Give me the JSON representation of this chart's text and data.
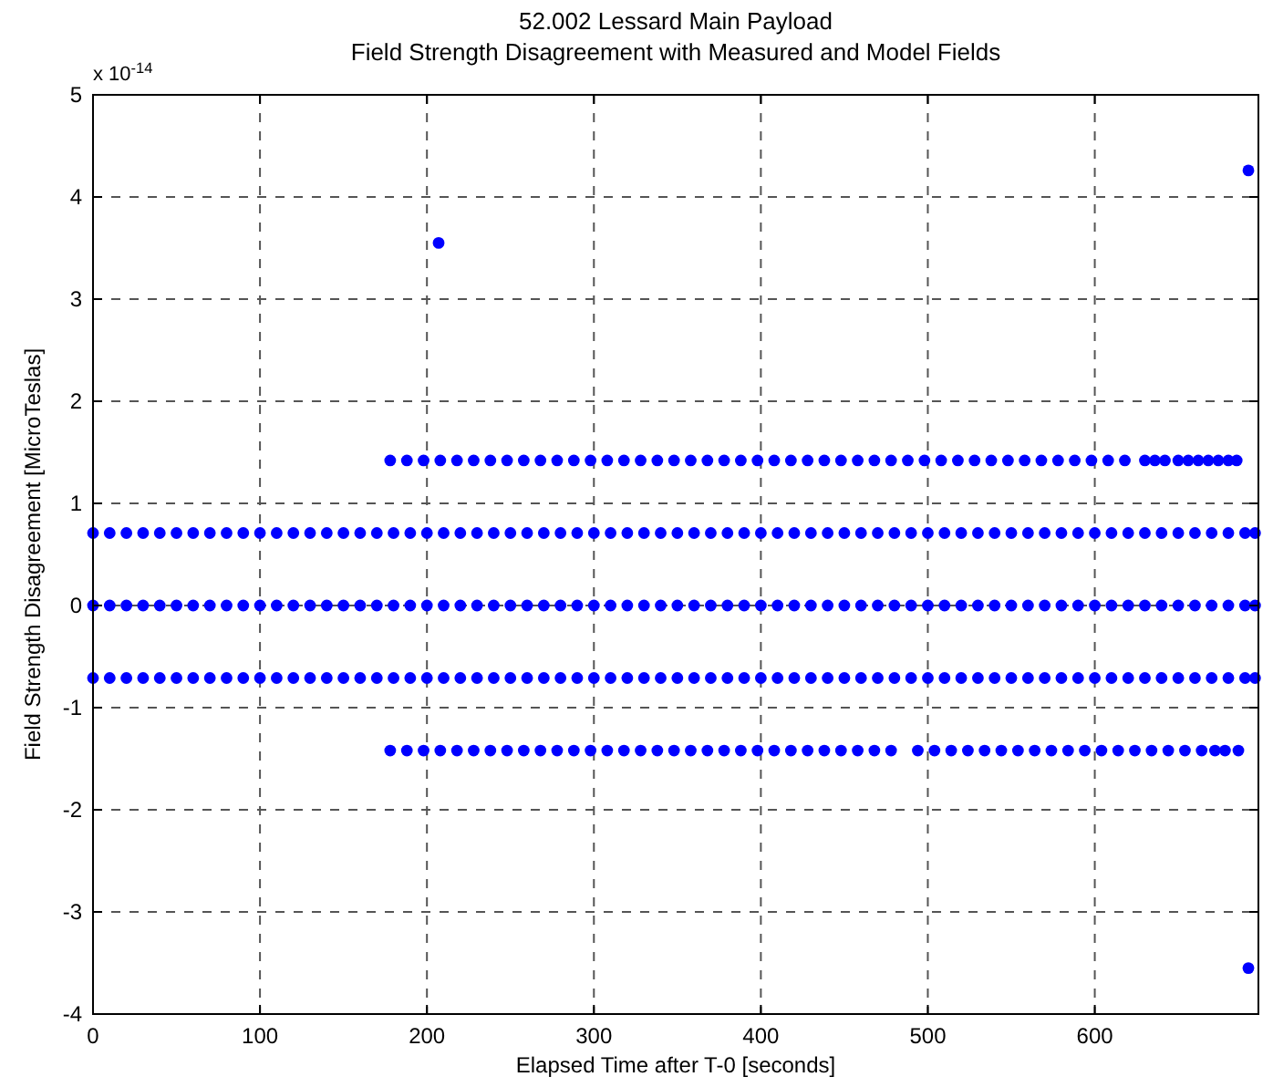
{
  "chart_data": {
    "type": "scatter",
    "title": "52.002 Lessard Main Payload",
    "subtitle": "Field Strength Disagreement with Measured and Model Fields",
    "xlabel": "Elapsed Time after T-0 [seconds]",
    "ylabel": "Field Strength Disagreement [MicroTeslas]",
    "annotations": [
      "x 10$^{-14}$"
    ],
    "xlim": [
      0,
      698
    ],
    "xticks": [
      0,
      100,
      200,
      300,
      400,
      500,
      600
    ],
    "ylim": [
      -4,
      5
    ],
    "yticks": [
      -4,
      -3,
      -2,
      -1,
      0,
      1,
      2,
      3,
      4,
      5
    ],
    "grid": true,
    "marker": "circle",
    "series": [
      {
        "color": "#0000ff",
        "x": [
          0,
          10,
          20,
          30,
          40,
          50,
          60,
          70,
          80,
          90,
          100,
          110,
          120,
          130,
          140,
          150,
          160,
          170,
          180,
          190,
          200,
          210,
          220,
          230,
          240,
          250,
          260,
          270,
          280,
          290,
          300,
          310,
          320,
          330,
          340,
          350,
          360,
          370,
          380,
          390,
          400,
          410,
          420,
          430,
          440,
          450,
          460,
          470,
          480,
          490,
          500,
          510,
          520,
          530,
          540,
          550,
          560,
          570,
          580,
          590,
          600,
          610,
          620,
          630,
          640,
          650,
          660,
          670,
          680,
          690,
          696
        ],
        "values": [
          0.71,
          0.71,
          0.71,
          0.71,
          0.71,
          0.71,
          0.71,
          0.71,
          0.71,
          0.71,
          0.71,
          0.71,
          0.71,
          0.71,
          0.71,
          0.71,
          0.71,
          0.71,
          0.71,
          0.71,
          0.71,
          0.71,
          0.71,
          0.71,
          0.71,
          0.71,
          0.71,
          0.71,
          0.71,
          0.71,
          0.71,
          0.71,
          0.71,
          0.71,
          0.71,
          0.71,
          0.71,
          0.71,
          0.71,
          0.71,
          0.71,
          0.71,
          0.71,
          0.71,
          0.71,
          0.71,
          0.71,
          0.71,
          0.71,
          0.71,
          0.71,
          0.71,
          0.71,
          0.71,
          0.71,
          0.71,
          0.71,
          0.71,
          0.71,
          0.71,
          0.71,
          0.71,
          0.71,
          0.71,
          0.71,
          0.71,
          0.71,
          0.71,
          0.71,
          0.71,
          0.71
        ]
      },
      {
        "color": "#0000ff",
        "x": [
          0,
          10,
          20,
          30,
          40,
          50,
          60,
          70,
          80,
          90,
          100,
          110,
          120,
          130,
          140,
          150,
          160,
          170,
          180,
          190,
          200,
          210,
          220,
          230,
          240,
          250,
          260,
          270,
          280,
          290,
          300,
          310,
          320,
          330,
          340,
          350,
          360,
          370,
          380,
          390,
          400,
          410,
          420,
          430,
          440,
          450,
          460,
          470,
          480,
          490,
          500,
          510,
          520,
          530,
          540,
          550,
          560,
          570,
          580,
          590,
          600,
          610,
          620,
          630,
          640,
          650,
          660,
          670,
          680,
          690,
          696
        ],
        "values": [
          0,
          0,
          0,
          0,
          0,
          0,
          0,
          0,
          0,
          0,
          0,
          0,
          0,
          0,
          0,
          0,
          0,
          0,
          0,
          0,
          0,
          0,
          0,
          0,
          0,
          0,
          0,
          0,
          0,
          0,
          0,
          0,
          0,
          0,
          0,
          0,
          0,
          0,
          0,
          0,
          0,
          0,
          0,
          0,
          0,
          0,
          0,
          0,
          0,
          0,
          0,
          0,
          0,
          0,
          0,
          0,
          0,
          0,
          0,
          0,
          0,
          0,
          0,
          0,
          0,
          0,
          0,
          0,
          0,
          0,
          0
        ]
      },
      {
        "color": "#0000ff",
        "x": [
          0,
          10,
          20,
          30,
          40,
          50,
          60,
          70,
          80,
          90,
          100,
          110,
          120,
          130,
          140,
          150,
          160,
          170,
          180,
          190,
          200,
          210,
          220,
          230,
          240,
          250,
          260,
          270,
          280,
          290,
          300,
          310,
          320,
          330,
          340,
          350,
          360,
          370,
          380,
          390,
          400,
          410,
          420,
          430,
          440,
          450,
          460,
          470,
          480,
          490,
          500,
          510,
          520,
          530,
          540,
          550,
          560,
          570,
          580,
          590,
          600,
          610,
          620,
          630,
          640,
          650,
          660,
          670,
          680,
          690,
          696
        ],
        "values": [
          -0.71,
          -0.71,
          -0.71,
          -0.71,
          -0.71,
          -0.71,
          -0.71,
          -0.71,
          -0.71,
          -0.71,
          -0.71,
          -0.71,
          -0.71,
          -0.71,
          -0.71,
          -0.71,
          -0.71,
          -0.71,
          -0.71,
          -0.71,
          -0.71,
          -0.71,
          -0.71,
          -0.71,
          -0.71,
          -0.71,
          -0.71,
          -0.71,
          -0.71,
          -0.71,
          -0.71,
          -0.71,
          -0.71,
          -0.71,
          -0.71,
          -0.71,
          -0.71,
          -0.71,
          -0.71,
          -0.71,
          -0.71,
          -0.71,
          -0.71,
          -0.71,
          -0.71,
          -0.71,
          -0.71,
          -0.71,
          -0.71,
          -0.71,
          -0.71,
          -0.71,
          -0.71,
          -0.71,
          -0.71,
          -0.71,
          -0.71,
          -0.71,
          -0.71,
          -0.71,
          -0.71,
          -0.71,
          -0.71,
          -0.71,
          -0.71,
          -0.71,
          -0.71,
          -0.71,
          -0.71,
          -0.71,
          -0.71
        ]
      },
      {
        "color": "#0000ff",
        "x": [
          178,
          188,
          198,
          208,
          218,
          228,
          238,
          248,
          258,
          268,
          278,
          288,
          298,
          308,
          318,
          328,
          338,
          348,
          358,
          368,
          378,
          388,
          398,
          408,
          418,
          428,
          438,
          448,
          458,
          468,
          478,
          488,
          498,
          508,
          518,
          528,
          538,
          548,
          558,
          568,
          578,
          588,
          598,
          608,
          618,
          630,
          636,
          642,
          650,
          656,
          662,
          668,
          674,
          680,
          685
        ],
        "values": [
          1.42,
          1.42,
          1.42,
          1.42,
          1.42,
          1.42,
          1.42,
          1.42,
          1.42,
          1.42,
          1.42,
          1.42,
          1.42,
          1.42,
          1.42,
          1.42,
          1.42,
          1.42,
          1.42,
          1.42,
          1.42,
          1.42,
          1.42,
          1.42,
          1.42,
          1.42,
          1.42,
          1.42,
          1.42,
          1.42,
          1.42,
          1.42,
          1.42,
          1.42,
          1.42,
          1.42,
          1.42,
          1.42,
          1.42,
          1.42,
          1.42,
          1.42,
          1.42,
          1.42,
          1.42,
          1.42,
          1.42,
          1.42,
          1.42,
          1.42,
          1.42,
          1.42,
          1.42,
          1.42,
          1.42
        ]
      },
      {
        "color": "#0000ff",
        "x": [
          178,
          188,
          198,
          208,
          218,
          228,
          238,
          248,
          258,
          268,
          278,
          288,
          298,
          308,
          318,
          328,
          338,
          348,
          358,
          368,
          378,
          388,
          398,
          408,
          418,
          428,
          438,
          448,
          458,
          468,
          478,
          494,
          504,
          514,
          524,
          534,
          544,
          554,
          564,
          574,
          584,
          594,
          604,
          614,
          624,
          634,
          644,
          654,
          664,
          672,
          678,
          686
        ],
        "values": [
          -1.42,
          -1.42,
          -1.42,
          -1.42,
          -1.42,
          -1.42,
          -1.42,
          -1.42,
          -1.42,
          -1.42,
          -1.42,
          -1.42,
          -1.42,
          -1.42,
          -1.42,
          -1.42,
          -1.42,
          -1.42,
          -1.42,
          -1.42,
          -1.42,
          -1.42,
          -1.42,
          -1.42,
          -1.42,
          -1.42,
          -1.42,
          -1.42,
          -1.42,
          -1.42,
          -1.42,
          -1.42,
          -1.42,
          -1.42,
          -1.42,
          -1.42,
          -1.42,
          -1.42,
          -1.42,
          -1.42,
          -1.42,
          -1.42,
          -1.42,
          -1.42,
          -1.42,
          -1.42,
          -1.42,
          -1.42,
          -1.42,
          -1.42,
          -1.42,
          -1.42
        ]
      },
      {
        "color": "#0000ff",
        "x": [
          207,
          692,
          692
        ],
        "values": [
          3.55,
          4.26,
          -3.55
        ]
      }
    ]
  }
}
